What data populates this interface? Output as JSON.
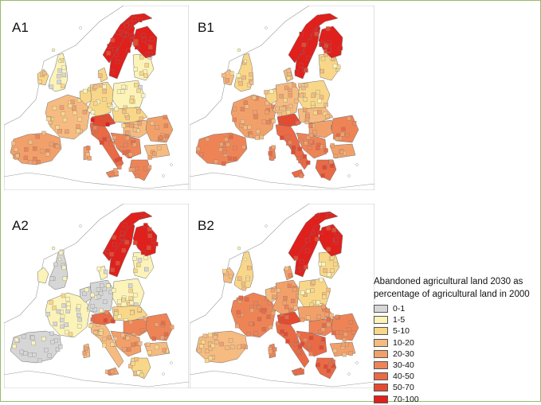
{
  "panels": [
    {
      "id": "A1",
      "label": "A1",
      "level": 0.55
    },
    {
      "id": "B1",
      "label": "B1",
      "level": 0.65
    },
    {
      "id": "A2",
      "label": "A2",
      "level": 0.35
    },
    {
      "id": "B2",
      "label": "B2",
      "level": 0.75
    }
  ],
  "legend": {
    "title_line1": "Abandoned agricultural land 2030 as",
    "title_line2": "percentage of agricultural land in 2000",
    "classes": [
      {
        "label": "0-1",
        "color": "#d6d6d6"
      },
      {
        "label": "1-5",
        "color": "#fbf3b8"
      },
      {
        "label": "5-10",
        "color": "#f9d789"
      },
      {
        "label": "10-20",
        "color": "#f6bb80"
      },
      {
        "label": "20-30",
        "color": "#f2a06a"
      },
      {
        "label": "30-40",
        "color": "#ee8456"
      },
      {
        "label": "40-50",
        "color": "#ea6a45"
      },
      {
        "label": "50-70",
        "color": "#e54a30"
      },
      {
        "label": "70-100",
        "color": "#e0201c"
      }
    ]
  },
  "colors": {
    "frame": "#9ab86a",
    "outline": "#555555",
    "sea": "#ffffff"
  }
}
